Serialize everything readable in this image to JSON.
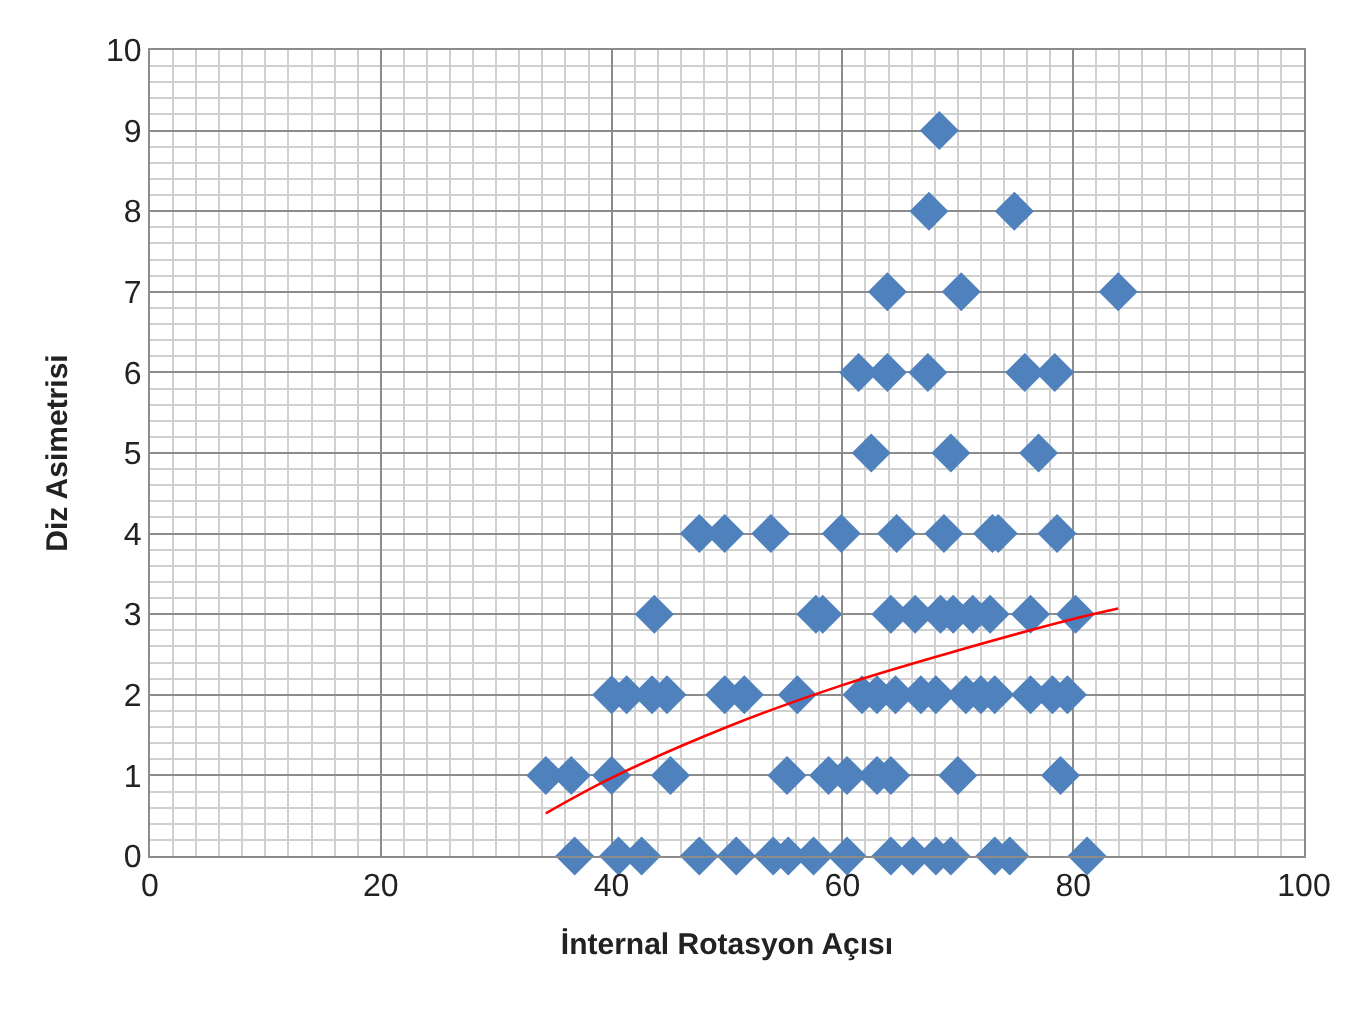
{
  "chart_data": {
    "type": "scatter",
    "xlabel": "İnternal Rotasyon Açısı",
    "ylabel": "Diz Asimetrisi",
    "xlim": [
      0,
      100
    ],
    "xticks": [
      0,
      20,
      40,
      60,
      80,
      100
    ],
    "ylim": [
      0,
      10
    ],
    "yticks": [
      0,
      1,
      2,
      3,
      4,
      5,
      6,
      7,
      8,
      9,
      10
    ],
    "grid": true,
    "legend": false,
    "series": [
      {
        "marker": "diamond",
        "color": "#4f81bd",
        "x": [
          68.4,
          67.5,
          74.9,
          63.9,
          70.3,
          83.9,
          61.4,
          63.9,
          67.4,
          75.8,
          78.4,
          62.5,
          69.4,
          77.0,
          47.6,
          49.8,
          53.8,
          59.9,
          64.7,
          68.8,
          73.0,
          73.5,
          78.6,
          43.7,
          57.7,
          58.3,
          64.2,
          66.3,
          68.5,
          69.6,
          71.3,
          72.8,
          76.3,
          80.2,
          40.0,
          41.3,
          43.5,
          44.8,
          49.8,
          51.5,
          56.1,
          61.7,
          63.0,
          64.6,
          66.8,
          68.1,
          70.7,
          72.0,
          73.2,
          76.3,
          78.2,
          79.5,
          34.3,
          36.5,
          40.0,
          45.1,
          55.2,
          58.8,
          60.4,
          63.0,
          64.2,
          70.0,
          78.9,
          36.8,
          40.6,
          42.6,
          47.6,
          50.8,
          54.0,
          55.3,
          57.5,
          60.4,
          64.2,
          66.1,
          68.1,
          69.4,
          73.2,
          74.5,
          81.2
        ],
        "values": [
          9,
          8,
          8,
          7,
          7,
          7,
          6,
          6,
          6,
          6,
          6,
          5,
          5,
          5,
          4,
          4,
          4,
          4,
          4,
          4,
          4,
          4,
          4,
          3,
          3,
          3,
          3,
          3,
          3,
          3,
          3,
          3,
          3,
          3,
          2,
          2,
          2,
          2,
          2,
          2,
          2,
          2,
          2,
          2,
          2,
          2,
          2,
          2,
          2,
          2,
          2,
          2,
          1,
          1,
          1,
          1,
          1,
          1,
          1,
          1,
          1,
          1,
          1,
          0,
          0,
          0,
          0,
          0,
          0,
          0,
          0,
          0,
          0,
          0,
          0,
          0,
          0,
          0,
          0
        ]
      },
      {
        "type": "line",
        "marker": "none",
        "line_style": "solid",
        "color": "#ff0000",
        "x": [
          34.3,
          40,
          50,
          60,
          70,
          80,
          83.9
        ],
        "values": [
          0.53,
          0.97,
          1.6,
          2.12,
          2.55,
          2.94,
          3.07
        ]
      }
    ]
  }
}
